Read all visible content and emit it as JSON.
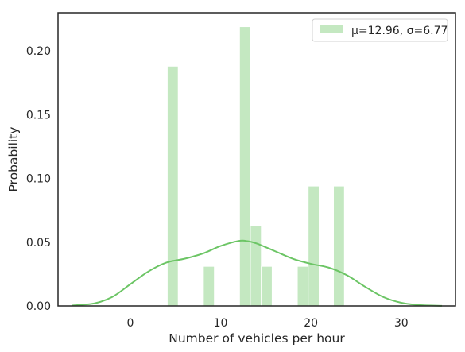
{
  "chart_data": {
    "type": "bar",
    "xlabel": "Number of vehicles per hour",
    "ylabel": "Probability",
    "xlim": [
      -8,
      36
    ],
    "ylim": [
      0,
      0.23
    ],
    "xticks": [
      0,
      10,
      20,
      30
    ],
    "yticks": [
      0.0,
      0.05,
      0.1,
      0.15,
      0.2
    ],
    "ytick_labels": [
      "0.00",
      "0.05",
      "0.10",
      "0.15",
      "0.20"
    ],
    "grid": false,
    "legend": {
      "position": "top-right",
      "entries": [
        "μ=12.96, σ=6.77"
      ]
    },
    "colors": {
      "bar": "#c4e8c1",
      "kde": "#6cc565",
      "axes": "#262626"
    },
    "histogram": {
      "bin_width": 1.2,
      "bins": [
        {
          "x0": 4.1,
          "value": 0.188
        },
        {
          "x0": 8.1,
          "value": 0.031
        },
        {
          "x0": 12.1,
          "value": 0.219
        },
        {
          "x0": 13.3,
          "value": 0.063
        },
        {
          "x0": 14.5,
          "value": 0.031
        },
        {
          "x0": 18.5,
          "value": 0.031
        },
        {
          "x0": 19.7,
          "value": 0.094
        },
        {
          "x0": 22.5,
          "value": 0.094
        }
      ]
    },
    "kde": {
      "x": [
        -6.5,
        -4,
        -2,
        0,
        2,
        4,
        6,
        8,
        10,
        12,
        13,
        14,
        16,
        18,
        20,
        22,
        24,
        26,
        28,
        30,
        32,
        34.5
      ],
      "y": [
        0.0003,
        0.002,
        0.007,
        0.017,
        0.027,
        0.034,
        0.037,
        0.041,
        0.047,
        0.051,
        0.0508,
        0.049,
        0.043,
        0.037,
        0.033,
        0.03,
        0.024,
        0.015,
        0.007,
        0.0025,
        0.0007,
        0.0001
      ]
    }
  }
}
